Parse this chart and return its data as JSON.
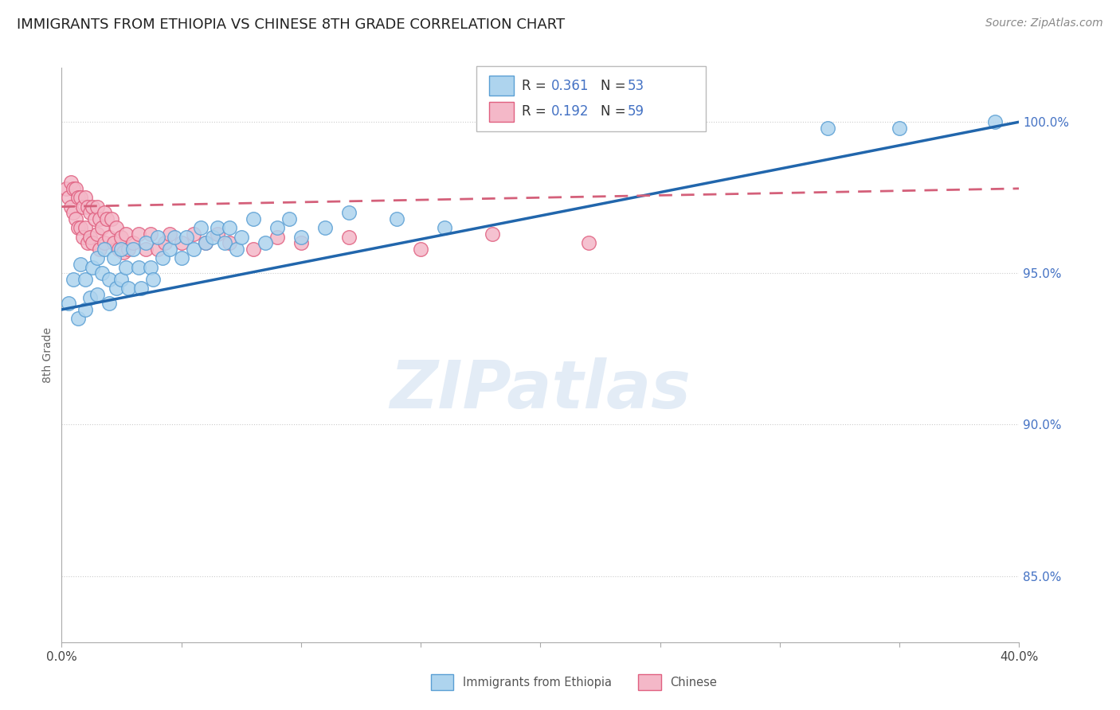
{
  "title": "IMMIGRANTS FROM ETHIOPIA VS CHINESE 8TH GRADE CORRELATION CHART",
  "source": "Source: ZipAtlas.com",
  "ylabel": "8th Grade",
  "ylabel_right_ticks": [
    "85.0%",
    "90.0%",
    "95.0%",
    "100.0%"
  ],
  "ylabel_right_vals": [
    0.85,
    0.9,
    0.95,
    1.0
  ],
  "xlim": [
    0.0,
    0.4
  ],
  "ylim": [
    0.828,
    1.018
  ],
  "legend_r_blue": "0.361",
  "legend_n_blue": "53",
  "legend_r_pink": "0.192",
  "legend_n_pink": "59",
  "legend_label_blue": "Immigrants from Ethiopia",
  "legend_label_pink": "Chinese",
  "blue_color": "#aed4ee",
  "blue_edge_color": "#5a9fd4",
  "pink_color": "#f4b8c8",
  "pink_edge_color": "#e06080",
  "blue_line_color": "#2166ac",
  "pink_line_color": "#d4607a",
  "watermark": "ZIPatlas",
  "blue_scatter_x": [
    0.003,
    0.005,
    0.007,
    0.008,
    0.01,
    0.01,
    0.012,
    0.013,
    0.015,
    0.015,
    0.017,
    0.018,
    0.02,
    0.02,
    0.022,
    0.023,
    0.025,
    0.025,
    0.027,
    0.028,
    0.03,
    0.032,
    0.033,
    0.035,
    0.037,
    0.038,
    0.04,
    0.042,
    0.045,
    0.047,
    0.05,
    0.052,
    0.055,
    0.058,
    0.06,
    0.063,
    0.065,
    0.068,
    0.07,
    0.073,
    0.075,
    0.08,
    0.085,
    0.09,
    0.095,
    0.1,
    0.11,
    0.12,
    0.14,
    0.16,
    0.32,
    0.35,
    0.39
  ],
  "blue_scatter_y": [
    0.94,
    0.948,
    0.935,
    0.953,
    0.948,
    0.938,
    0.942,
    0.952,
    0.955,
    0.943,
    0.95,
    0.958,
    0.948,
    0.94,
    0.955,
    0.945,
    0.958,
    0.948,
    0.952,
    0.945,
    0.958,
    0.952,
    0.945,
    0.96,
    0.952,
    0.948,
    0.962,
    0.955,
    0.958,
    0.962,
    0.955,
    0.962,
    0.958,
    0.965,
    0.96,
    0.962,
    0.965,
    0.96,
    0.965,
    0.958,
    0.962,
    0.968,
    0.96,
    0.965,
    0.968,
    0.962,
    0.965,
    0.97,
    0.968,
    0.965,
    0.998,
    0.998,
    1.0
  ],
  "pink_scatter_x": [
    0.002,
    0.003,
    0.004,
    0.004,
    0.005,
    0.005,
    0.006,
    0.006,
    0.007,
    0.007,
    0.008,
    0.008,
    0.009,
    0.009,
    0.01,
    0.01,
    0.011,
    0.011,
    0.012,
    0.012,
    0.013,
    0.013,
    0.014,
    0.015,
    0.015,
    0.016,
    0.016,
    0.017,
    0.018,
    0.018,
    0.019,
    0.02,
    0.021,
    0.022,
    0.023,
    0.024,
    0.025,
    0.026,
    0.027,
    0.028,
    0.03,
    0.032,
    0.035,
    0.037,
    0.04,
    0.043,
    0.045,
    0.05,
    0.055,
    0.06,
    0.065,
    0.07,
    0.08,
    0.09,
    0.1,
    0.12,
    0.15,
    0.18,
    0.22
  ],
  "pink_scatter_y": [
    0.978,
    0.975,
    0.98,
    0.972,
    0.978,
    0.97,
    0.978,
    0.968,
    0.975,
    0.965,
    0.975,
    0.965,
    0.972,
    0.962,
    0.975,
    0.965,
    0.972,
    0.96,
    0.97,
    0.962,
    0.972,
    0.96,
    0.968,
    0.972,
    0.963,
    0.968,
    0.958,
    0.965,
    0.97,
    0.96,
    0.968,
    0.962,
    0.968,
    0.96,
    0.965,
    0.958,
    0.962,
    0.957,
    0.963,
    0.958,
    0.96,
    0.963,
    0.958,
    0.963,
    0.958,
    0.96,
    0.963,
    0.96,
    0.963,
    0.96,
    0.963,
    0.96,
    0.958,
    0.962,
    0.96,
    0.962,
    0.958,
    0.963,
    0.96
  ],
  "blue_line_x0": 0.0,
  "blue_line_y0": 0.938,
  "blue_line_x1": 0.4,
  "blue_line_y1": 1.0,
  "pink_line_x0": 0.0,
  "pink_line_y0": 0.972,
  "pink_line_x1": 0.4,
  "pink_line_y1": 0.978
}
